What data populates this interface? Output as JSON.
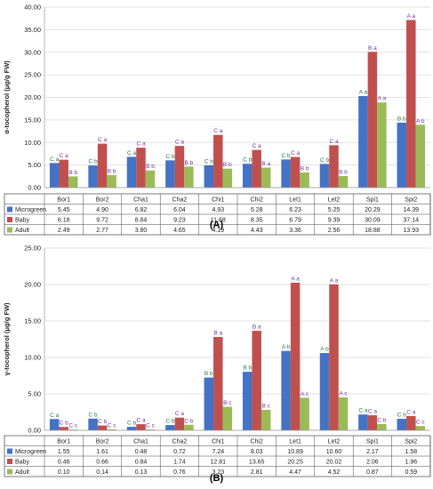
{
  "colors": {
    "Microgreen": "#4472C4",
    "Baby": "#C0504D",
    "Adult": "#9BBB59",
    "grid": "#d9d9d9",
    "labelMicrogreen": "#1F7A4D",
    "labelBaby": "#7030A0",
    "labelAdult": "#7030A0"
  },
  "chart_data": [
    {
      "type": "bar",
      "panel": "(A)",
      "title": "",
      "xlabel": "",
      "ylabel": "α-tocopherol (μg/g FW)",
      "ylim": [
        0,
        40
      ],
      "yticks": [
        "0.00",
        "5.00",
        "10.00",
        "15.00",
        "20.00",
        "25.00",
        "30.00",
        "35.00",
        "40.00"
      ],
      "grid": "horizontal",
      "legend": "data table below plot",
      "categories": [
        "Bor1",
        "Bor2",
        "Cha1",
        "Cha2",
        "Chi1",
        "Chi2",
        "Let1",
        "Let2",
        "Spi1",
        "Spi2"
      ],
      "series": [
        {
          "name": "Microgreen",
          "values": [
            5.45,
            4.9,
            6.82,
            6.04,
            4.93,
            5.28,
            6.23,
            5.25,
            20.29,
            14.39
          ],
          "display": [
            "5.45",
            "4.90",
            "6.82",
            "6.04",
            "4.93",
            "5.28",
            "6.23",
            "5.25",
            "20.29",
            "14.39"
          ],
          "labels": [
            "C a",
            "C b",
            "C a",
            "C b",
            "C b",
            "C b",
            "C b",
            "C b",
            "A a",
            "B b"
          ]
        },
        {
          "name": "Baby",
          "values": [
            6.18,
            9.72,
            8.84,
            9.23,
            11.68,
            8.35,
            6.79,
            9.39,
            30.09,
            37.14
          ],
          "display": [
            "6.18",
            "9.72",
            "8.84",
            "9.23",
            "11.68",
            "8.35",
            "6.79",
            "9.39",
            "30.09",
            "37.14"
          ],
          "labels": [
            "C a",
            "C a",
            "C a",
            "C a",
            "C a",
            "C a",
            "C a",
            "C a",
            "B a",
            "A a"
          ]
        },
        {
          "name": "Adult",
          "values": [
            2.49,
            2.77,
            3.8,
            4.65,
            4.19,
            4.43,
            3.36,
            2.56,
            18.88,
            13.93
          ],
          "display": [
            "2.49",
            "2.77",
            "3.80",
            "4.65",
            "4.19",
            "4.43",
            "3.36",
            "2.56",
            "18.88",
            "13.93"
          ],
          "labels": [
            "B b",
            "B b",
            "B b",
            "B b",
            "B b",
            "B a",
            "B b",
            "B b",
            "A a",
            "A b"
          ]
        }
      ]
    },
    {
      "type": "bar",
      "panel": "(B)",
      "title": "",
      "xlabel": "",
      "ylabel": "γ-tocopherol (μg/g FW)",
      "ylim": [
        0,
        25
      ],
      "yticks": [
        "0.00",
        "5.00",
        "10.00",
        "15.00",
        "20.00",
        "25.00"
      ],
      "grid": "horizontal",
      "legend": "data table below plot",
      "categories": [
        "Bor1",
        "Bor2",
        "Cha1",
        "Cha2",
        "Chi1",
        "Chi2",
        "Let1",
        "Let2",
        "Spi1",
        "Spi2"
      ],
      "series": [
        {
          "name": "Microgreen",
          "values": [
            1.55,
            1.61,
            0.48,
            0.72,
            7.24,
            8.03,
            10.89,
            10.6,
            2.17,
            1.58
          ],
          "display": [
            "1.55",
            "1.61",
            "0.48",
            "0.72",
            "7.24",
            "8.03",
            "10.89",
            "10.60",
            "2.17",
            "1.58"
          ],
          "labels": [
            "C a",
            "C b",
            "C b",
            "C b",
            "B b",
            "B b",
            "A b",
            "A b",
            "C a",
            "C b"
          ]
        },
        {
          "name": "Baby",
          "values": [
            0.46,
            0.66,
            0.84,
            1.74,
            12.81,
            13.65,
            20.25,
            20.02,
            2.06,
            1.96
          ],
          "display": [
            "0.46",
            "0.66",
            "0.84",
            "1.74",
            "12.81",
            "13.65",
            "20.25",
            "20.02",
            "2.06",
            "1.96"
          ],
          "labels": [
            "C b",
            "C b",
            "C a",
            "C a",
            "B a",
            "B a",
            "A a",
            "A a",
            "C a",
            "C a"
          ]
        },
        {
          "name": "Adult",
          "values": [
            0.1,
            0.14,
            0.13,
            0.76,
            3.23,
            2.81,
            4.47,
            4.52,
            0.87,
            0.59
          ],
          "display": [
            "0.10",
            "0.14",
            "0.13",
            "0.76",
            "3.23",
            "2.81",
            "4.47",
            "4.52",
            "0.87",
            "0.59"
          ],
          "labels": [
            "C c",
            "C c",
            "C c",
            "C b",
            "B c",
            "B c",
            "A c",
            "A c",
            "C b",
            "C c"
          ]
        }
      ]
    }
  ]
}
